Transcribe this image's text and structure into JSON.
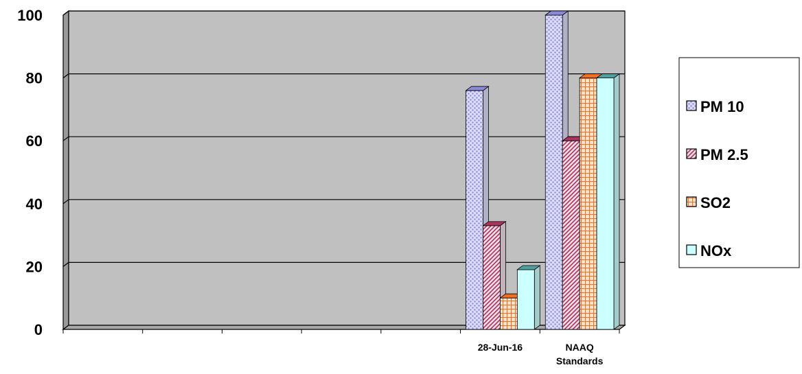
{
  "chart_data": {
    "type": "bar",
    "categories": [
      "",
      "",
      "",
      "",
      "",
      "28-Jun-16",
      "NAAQ Standards"
    ],
    "category_label_lines": [
      [],
      [],
      [],
      [],
      [],
      [
        "28-Jun-16"
      ],
      [
        "NAAQ",
        "Standards"
      ]
    ],
    "series": [
      {
        "name": "PM 10",
        "values": [
          null,
          null,
          null,
          null,
          null,
          76,
          100
        ],
        "color": "#dcdcf8",
        "pattern_color": "#8a8ad8",
        "pattern": "dots"
      },
      {
        "name": "PM 2.5",
        "values": [
          null,
          null,
          null,
          null,
          null,
          33,
          60
        ],
        "color": "#f4dde6",
        "pattern_color": "#a8345e",
        "pattern": "diagonal"
      },
      {
        "name": "SO2",
        "values": [
          null,
          null,
          null,
          null,
          null,
          10,
          80
        ],
        "color": "#fde3cc",
        "pattern_color": "#f07020",
        "pattern": "grid"
      },
      {
        "name": "NOx",
        "values": [
          null,
          null,
          null,
          null,
          null,
          19,
          80
        ],
        "color": "#ccffff",
        "pattern_color": "#50a0a0",
        "pattern": "solid"
      }
    ],
    "yticks": [
      0,
      20,
      40,
      60,
      80,
      100
    ],
    "ylim": [
      0,
      100
    ],
    "grid": true,
    "three_d": true,
    "legend_position": "right",
    "plot_background": "#c0c0c0",
    "title": "",
    "xlabel": "",
    "ylabel": ""
  }
}
